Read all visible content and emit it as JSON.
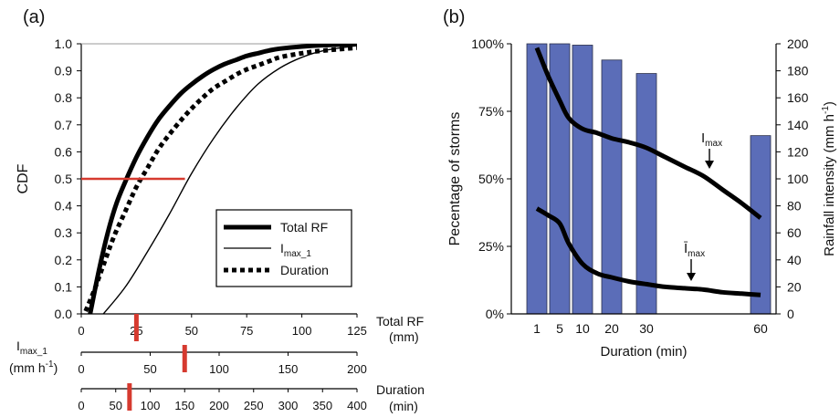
{
  "chart_data": [
    {
      "panel_label": "(a)",
      "type": "line",
      "ylabel": "CDF",
      "ylim": [
        0,
        1
      ],
      "yticks": [
        "0.0",
        "0.1",
        "0.2",
        "0.3",
        "0.4",
        "0.5",
        "0.6",
        "0.7",
        "0.8",
        "0.9",
        "1.0"
      ],
      "xaxes": [
        {
          "label_line1": "Total RF",
          "label_line2": "(mm)",
          "lim": [
            0,
            125
          ],
          "ticks": [
            "0",
            "25",
            "50",
            "75",
            "100",
            "125"
          ],
          "median_marker": 25
        },
        {
          "label_line1": "I",
          "label_sub": "max_1",
          "label_line2": "(mm h",
          "label_sup": "-1",
          "label_end": ")",
          "lim": [
            0,
            200
          ],
          "ticks": [
            "0",
            "50",
            "100",
            "150",
            "200"
          ],
          "median_marker": 75
        },
        {
          "label_line1": "Duration",
          "label_line2": "(min)",
          "lim": [
            0,
            400
          ],
          "ticks": [
            "0",
            "50",
            "100",
            "150",
            "200",
            "250",
            "300",
            "350",
            "400"
          ],
          "median_marker": 70
        }
      ],
      "legend_position": "right",
      "series": [
        {
          "name": "Total RF",
          "line": "thick-solid",
          "x": [
            4,
            8,
            12,
            16,
            20,
            25,
            30,
            35,
            40,
            45,
            50,
            55,
            60,
            65,
            70,
            75,
            80,
            85,
            90,
            100,
            110,
            125
          ],
          "y": [
            0,
            0.16,
            0.3,
            0.41,
            0.49,
            0.58,
            0.655,
            0.72,
            0.77,
            0.815,
            0.85,
            0.88,
            0.905,
            0.925,
            0.94,
            0.955,
            0.965,
            0.975,
            0.982,
            0.99,
            0.995,
            0.999
          ]
        },
        {
          "name": "I",
          "name_sub": "max_1",
          "line": "thin-solid",
          "x": [
            10,
            20,
            30,
            40,
            50,
            60,
            70,
            80,
            90,
            100,
            110,
            125
          ],
          "y": [
            0,
            0.1,
            0.23,
            0.37,
            0.52,
            0.65,
            0.76,
            0.85,
            0.91,
            0.95,
            0.975,
            0.993
          ]
        },
        {
          "name": "Duration",
          "line": "thick-dotted",
          "x": [
            2,
            6,
            10,
            15,
            20,
            25,
            30,
            35,
            40,
            45,
            50,
            55,
            60,
            65,
            70,
            75,
            80,
            85,
            90,
            100,
            110,
            125
          ],
          "y": [
            0.01,
            0.09,
            0.18,
            0.29,
            0.38,
            0.47,
            0.54,
            0.61,
            0.665,
            0.715,
            0.76,
            0.8,
            0.835,
            0.86,
            0.885,
            0.905,
            0.92,
            0.935,
            0.95,
            0.965,
            0.975,
            0.985
          ]
        }
      ],
      "median_line": {
        "y": 0.5,
        "x_end": 47,
        "color": "#d63a2f"
      }
    },
    {
      "panel_label": "(b)",
      "type": "bar+line",
      "xlabel": "Duration (min)",
      "ylabel_left": "Pecentage of storms",
      "ylabel_right_prefix": "Rainfall intensity (mm h",
      "ylabel_right_sup": "-1",
      "ylabel_right_end": ")",
      "ylim_left": [
        0,
        100
      ],
      "ylim_right": [
        0,
        200
      ],
      "yticks_left": [
        "0%",
        "25%",
        "50%",
        "75%",
        "100%"
      ],
      "yticks_right": [
        "0",
        "20",
        "40",
        "60",
        "80",
        "100",
        "120",
        "140",
        "160",
        "180",
        "200"
      ],
      "categories": [
        "1",
        "5",
        "10",
        "20",
        "30",
        "60"
      ],
      "bar_color": "#5b6db8",
      "bars": [
        {
          "category": "1",
          "value": 100
        },
        {
          "category": "5",
          "value": 100
        },
        {
          "category": "10",
          "value": 99.5
        },
        {
          "category": "20",
          "value": 94
        },
        {
          "category": "30",
          "value": 89
        },
        {
          "category": "60",
          "value": 66
        }
      ],
      "lines": [
        {
          "name": "I",
          "name_sub": "max",
          "x": [
            1,
            3,
            5,
            7,
            10,
            15,
            20,
            25,
            30,
            35,
            40,
            45,
            50,
            55,
            60
          ],
          "y": [
            197,
            176,
            158,
            145,
            137,
            134,
            130,
            127,
            123,
            116,
            109,
            102,
            92,
            82,
            71
          ]
        },
        {
          "name": "Ī",
          "name_sub": "max",
          "x": [
            1,
            3,
            5,
            7,
            10,
            15,
            20,
            25,
            30,
            35,
            40,
            45,
            50,
            55,
            60
          ],
          "y": [
            78,
            73,
            67,
            52,
            37,
            30,
            27,
            24,
            22,
            20,
            19,
            18,
            16,
            15,
            14
          ]
        }
      ]
    }
  ]
}
